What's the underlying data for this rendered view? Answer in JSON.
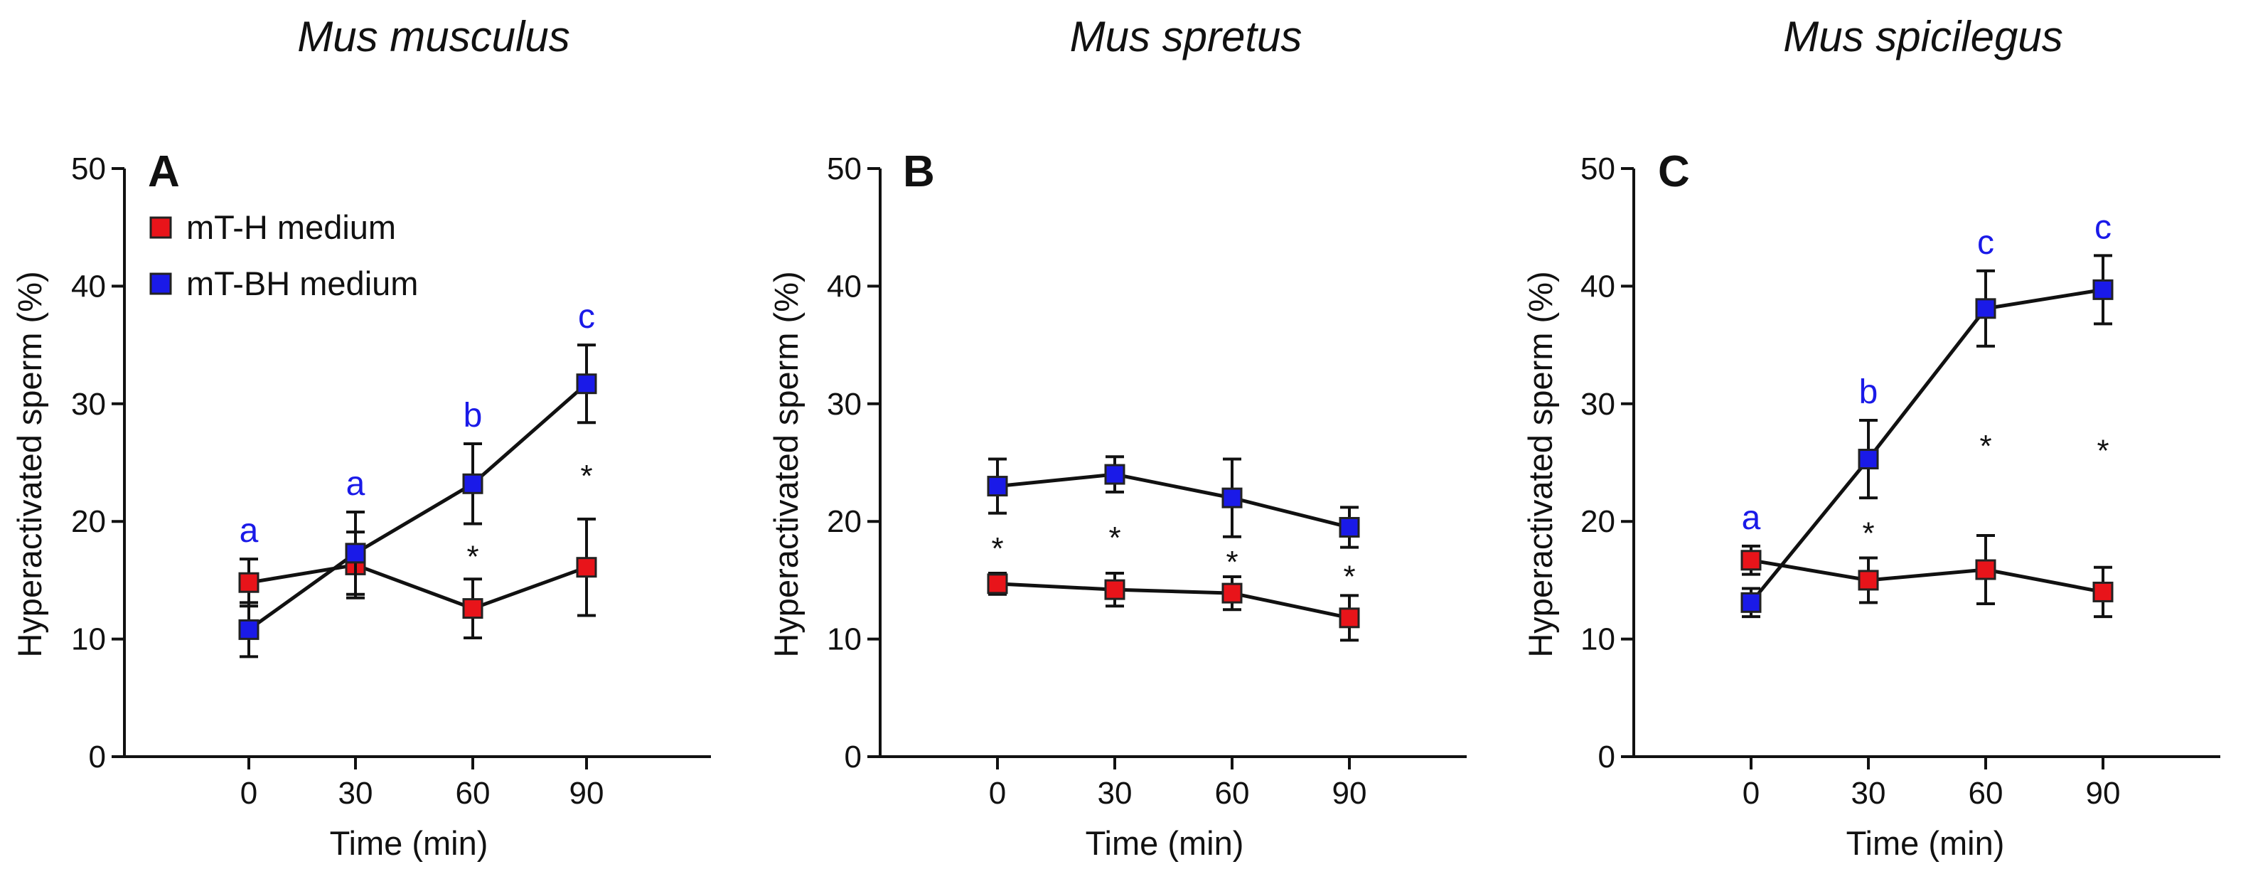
{
  "colors": {
    "mt_h": "#e8141a",
    "mt_bh": "#1a1ae8",
    "letters": "#1a1ae8",
    "axis": "#111111"
  },
  "legend": {
    "mt_h_label": "mT-H medium",
    "mt_bh_label": "mT-BH medium"
  },
  "chart_data": [
    {
      "type": "line",
      "panel": "A",
      "title": "Mus musculus",
      "xlabel": "Time (min)",
      "ylabel": "Hyperactivated sperm (%)",
      "ylim": [
        0,
        50
      ],
      "yticks": [
        0,
        10,
        20,
        30,
        40,
        50
      ],
      "categories": [
        "0",
        "30",
        "60",
        "90"
      ],
      "x": [
        0,
        30,
        60,
        90
      ],
      "series": [
        {
          "name": "mT-H medium",
          "color_key": "mt_h",
          "values": [
            14.8,
            16.3,
            12.6,
            16.1
          ],
          "errors": [
            2.0,
            2.8,
            2.5,
            4.1
          ]
        },
        {
          "name": "mT-BH medium",
          "color_key": "mt_bh",
          "values": [
            10.8,
            17.3,
            23.2,
            31.7
          ],
          "errors": [
            2.3,
            3.5,
            3.4,
            3.3
          ]
        }
      ],
      "letters": [
        "a",
        "a",
        "b",
        "c"
      ],
      "stars": [
        "",
        "",
        "*",
        "*"
      ]
    },
    {
      "type": "line",
      "panel": "B",
      "title": "Mus spretus",
      "xlabel": "Time (min)",
      "ylabel": "Hyperactivated sperm (%)",
      "ylim": [
        0,
        50
      ],
      "yticks": [
        0,
        10,
        20,
        30,
        40,
        50
      ],
      "categories": [
        "0",
        "30",
        "60",
        "90"
      ],
      "x": [
        0,
        30,
        60,
        90
      ],
      "series": [
        {
          "name": "mT-H medium",
          "color_key": "mt_h",
          "values": [
            14.7,
            14.2,
            13.9,
            11.8
          ],
          "errors": [
            0.9,
            1.4,
            1.4,
            1.9
          ]
        },
        {
          "name": "mT-BH medium",
          "color_key": "mt_bh",
          "values": [
            23.0,
            24.0,
            22.0,
            19.5
          ],
          "errors": [
            2.3,
            1.5,
            3.3,
            1.7
          ]
        }
      ],
      "letters": [
        "",
        "",
        "",
        ""
      ],
      "stars": [
        "*",
        "*",
        "*",
        "*"
      ]
    },
    {
      "type": "line",
      "panel": "C",
      "title": "Mus spicilegus",
      "xlabel": "Time (min)",
      "ylabel": "Hyperactivated sperm (%)",
      "ylim": [
        0,
        50
      ],
      "yticks": [
        0,
        10,
        20,
        30,
        40,
        50
      ],
      "categories": [
        "0",
        "30",
        "60",
        "90"
      ],
      "x": [
        0,
        30,
        60,
        90
      ],
      "series": [
        {
          "name": "mT-H medium",
          "color_key": "mt_h",
          "values": [
            16.7,
            15.0,
            15.9,
            14.0
          ],
          "errors": [
            1.2,
            1.9,
            2.9,
            2.1
          ]
        },
        {
          "name": "mT-BH medium",
          "color_key": "mt_bh",
          "values": [
            13.1,
            25.3,
            38.1,
            39.7
          ],
          "errors": [
            1.2,
            3.3,
            3.2,
            2.9
          ]
        }
      ],
      "letters": [
        "a",
        "b",
        "c",
        "c"
      ],
      "stars": [
        "",
        "*",
        "*",
        "*"
      ]
    }
  ]
}
